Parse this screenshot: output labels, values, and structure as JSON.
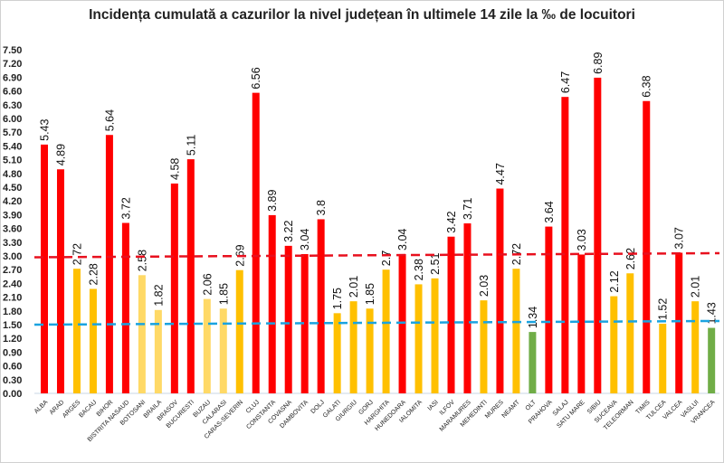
{
  "chart_data": {
    "type": "bar",
    "title": "Incidența cumulată a cazurilor la nivel județean în ultimele 14 zile la ‰ de locuitori",
    "xlabel": "",
    "ylabel": "",
    "ylim": [
      0,
      7.5
    ],
    "yticks": [
      "0.00",
      "0.30",
      "0.60",
      "0.90",
      "1.20",
      "1.50",
      "1.80",
      "2.10",
      "2.40",
      "2.70",
      "3.00",
      "3.30",
      "3.60",
      "3.90",
      "4.20",
      "4.50",
      "4.80",
      "5.10",
      "5.40",
      "5.70",
      "6.00",
      "6.30",
      "6.60",
      "6.90",
      "7.20",
      "7.50"
    ],
    "grid": false,
    "categories": [
      "ALBA",
      "ARAD",
      "ARGES",
      "BACAU",
      "BIHOR",
      "BISTRITA NASAUD",
      "BOTOSANI",
      "BRAILA",
      "BRASOV",
      "BUCURESTI",
      "BUZAU",
      "CALARASI",
      "CARAS-SEVERIN",
      "CLUJ",
      "CONSTANTA",
      "COVASNA",
      "DAMBOVITA",
      "DOLJ",
      "GALATI",
      "GIURGIU",
      "GORJ",
      "HARGHITA",
      "HUNEDOARA",
      "IALOMITA",
      "IASI",
      "ILFOV",
      "MARAMURES",
      "MEHEDINTI",
      "MURES",
      "NEAMT",
      "OLT",
      "PRAHOVA",
      "SALAJ",
      "SATU MARE",
      "SIBIU",
      "SUCEAVA",
      "TELEORMAN",
      "TIMIS",
      "TULCEA",
      "VALCEA",
      "VASLUI",
      "VRANCEA"
    ],
    "values": [
      5.43,
      4.89,
      2.72,
      2.28,
      5.64,
      3.72,
      2.58,
      1.82,
      4.58,
      5.11,
      2.06,
      1.85,
      2.69,
      6.56,
      3.89,
      3.22,
      3.04,
      3.8,
      1.75,
      2.01,
      1.85,
      2.7,
      3.04,
      2.38,
      2.51,
      3.42,
      3.71,
      2.03,
      4.47,
      2.72,
      1.34,
      3.64,
      6.47,
      3.03,
      6.89,
      2.12,
      2.62,
      6.38,
      1.52,
      3.07,
      2.01,
      1.43
    ],
    "data_labels": [
      "5.43",
      "4.89",
      "2.72",
      "2.28",
      "5.64",
      "3.72",
      "2.58",
      "1.82",
      "4.58",
      "5.11",
      "2.06",
      "1.85",
      "2.69",
      "6.56",
      "3.89",
      "3.22",
      "3.04",
      "3.8",
      "1.75",
      "2.01",
      "1.85",
      "2.7",
      "3.04",
      "2.38",
      "2.51",
      "3.42",
      "3.71",
      "2.03",
      "4.47",
      "2.72",
      "1.34",
      "3.64",
      "6.47",
      "3.03",
      "6.89",
      "2.12",
      "2.62",
      "6.38",
      "1.52",
      "3.07",
      "2.01",
      "1.43"
    ],
    "bar_colors": [
      "red",
      "red",
      "yellow",
      "yellow",
      "red",
      "red",
      "lightyellow",
      "lightyellow",
      "red",
      "red",
      "lightyellow",
      "lightyellow",
      "yellow",
      "red",
      "red",
      "red",
      "red",
      "red",
      "yellow",
      "yellow",
      "yellow",
      "yellow",
      "red",
      "yellow",
      "yellow",
      "red",
      "red",
      "yellow",
      "red",
      "yellow",
      "green",
      "red",
      "red",
      "red",
      "red",
      "yellow",
      "yellow",
      "red",
      "yellow",
      "red",
      "yellow",
      "green"
    ],
    "palette": {
      "red": "#FF0000",
      "yellow": "#FFC000",
      "lightyellow": "#FFD966",
      "green": "#70AD47"
    },
    "reference_lines": [
      {
        "style": "dashed",
        "color": "#E8101E",
        "from": 2.97,
        "to": 3.06
      },
      {
        "style": "dashed",
        "color": "#1AA3E0",
        "from": 1.5,
        "to": 1.58
      }
    ]
  }
}
